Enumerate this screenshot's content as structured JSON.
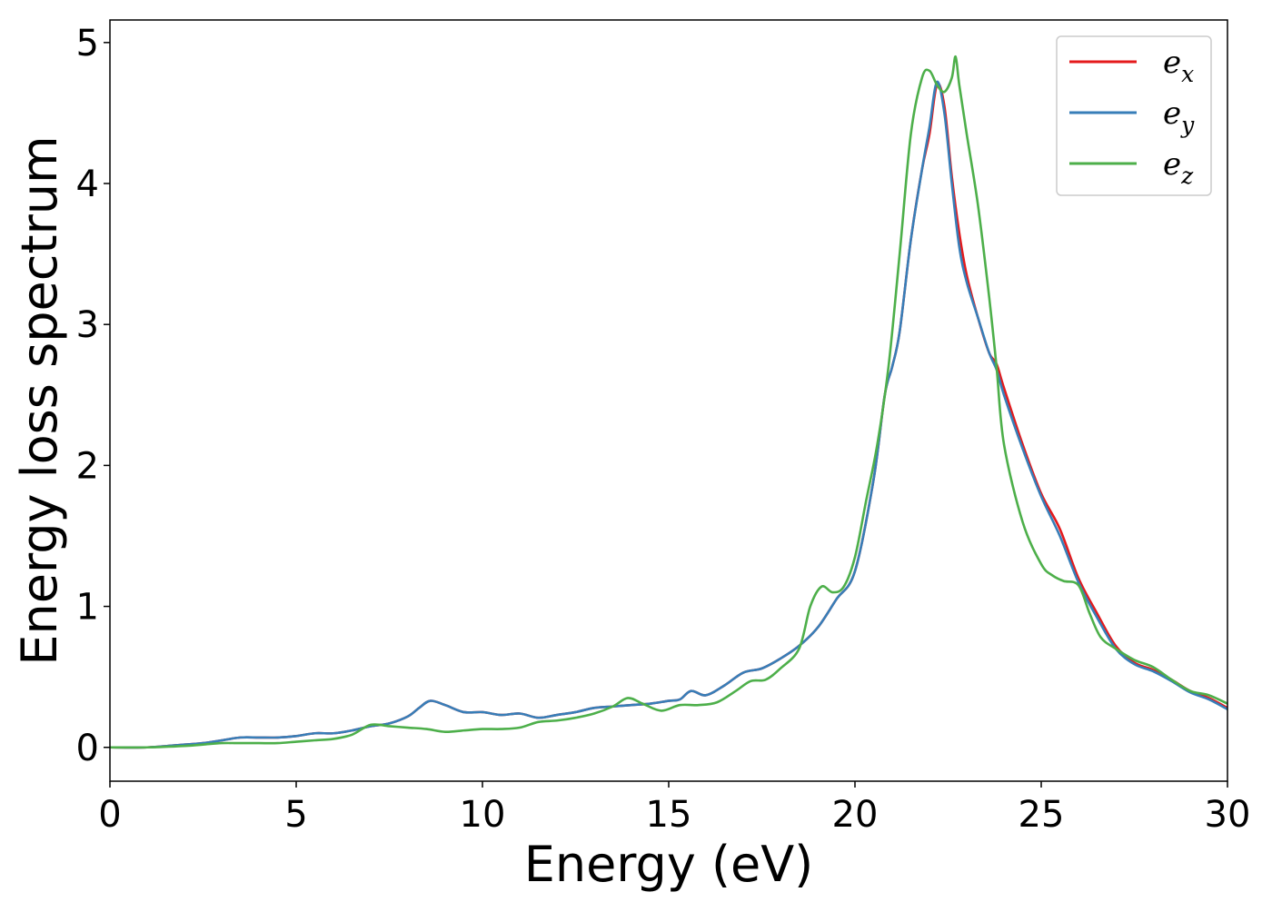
{
  "chart_data": {
    "type": "line",
    "xlabel": "Energy (eV)",
    "ylabel": "Energy loss spectrum",
    "xlim": [
      0,
      30
    ],
    "ylim": [
      -0.24,
      5.16
    ],
    "xticks": [
      "0",
      "5",
      "10",
      "15",
      "20",
      "25",
      "30"
    ],
    "yticks": [
      "0",
      "1",
      "2",
      "3",
      "4",
      "5"
    ],
    "grid": false,
    "legend_position": "top-right",
    "series": [
      {
        "name": "e_x",
        "legend_base": "e",
        "legend_sub": "x",
        "color": "#e41a1c",
        "x": [
          0,
          1,
          2,
          2.5,
          3,
          3.5,
          4,
          4.5,
          5,
          5.5,
          6,
          6.5,
          7,
          7.5,
          8,
          8.3,
          8.6,
          9,
          9.5,
          10,
          10.5,
          11,
          11.5,
          12,
          12.5,
          13,
          13.5,
          14,
          14.5,
          15,
          15.3,
          15.6,
          16,
          16.5,
          17,
          17.5,
          18,
          18.5,
          19,
          19.5,
          20,
          20.5,
          20.8,
          21,
          21.2,
          21.5,
          21.8,
          22,
          22.2,
          22.4,
          22.6,
          22.8,
          23,
          23.3,
          23.6,
          23.8,
          24,
          24.5,
          25,
          25.5,
          26,
          26.5,
          27,
          27.5,
          28,
          28.5,
          29,
          29.5,
          30
        ],
        "values": [
          0,
          0,
          0.02,
          0.03,
          0.05,
          0.07,
          0.07,
          0.07,
          0.08,
          0.1,
          0.1,
          0.12,
          0.15,
          0.17,
          0.22,
          0.28,
          0.33,
          0.3,
          0.25,
          0.25,
          0.23,
          0.24,
          0.21,
          0.23,
          0.25,
          0.28,
          0.29,
          0.3,
          0.31,
          0.33,
          0.34,
          0.4,
          0.37,
          0.44,
          0.53,
          0.56,
          0.63,
          0.72,
          0.85,
          1.05,
          1.25,
          1.9,
          2.5,
          2.7,
          2.95,
          3.6,
          4.1,
          4.35,
          4.7,
          4.55,
          4.05,
          3.65,
          3.35,
          3.05,
          2.8,
          2.72,
          2.55,
          2.15,
          1.8,
          1.55,
          1.2,
          0.95,
          0.72,
          0.6,
          0.55,
          0.48,
          0.4,
          0.35,
          0.28
        ]
      },
      {
        "name": "e_y",
        "legend_base": "e",
        "legend_sub": "y",
        "color": "#377eb8",
        "x": [
          0,
          1,
          2,
          2.5,
          3,
          3.5,
          4,
          4.5,
          5,
          5.5,
          6,
          6.5,
          7,
          7.5,
          8,
          8.3,
          8.6,
          9,
          9.5,
          10,
          10.5,
          11,
          11.5,
          12,
          12.5,
          13,
          13.5,
          14,
          14.5,
          15,
          15.3,
          15.6,
          16,
          16.5,
          17,
          17.5,
          18,
          18.5,
          19,
          19.5,
          20,
          20.5,
          20.8,
          21,
          21.2,
          21.5,
          21.8,
          22,
          22.2,
          22.4,
          22.6,
          22.8,
          23,
          23.3,
          23.6,
          23.8,
          24,
          24.5,
          25,
          25.5,
          26,
          26.5,
          27,
          27.5,
          28,
          28.5,
          29,
          29.5,
          30
        ],
        "values": [
          0,
          0,
          0.02,
          0.03,
          0.05,
          0.07,
          0.07,
          0.07,
          0.08,
          0.1,
          0.1,
          0.12,
          0.15,
          0.17,
          0.22,
          0.28,
          0.33,
          0.3,
          0.25,
          0.25,
          0.23,
          0.24,
          0.21,
          0.23,
          0.25,
          0.28,
          0.29,
          0.3,
          0.31,
          0.33,
          0.34,
          0.4,
          0.37,
          0.44,
          0.53,
          0.56,
          0.63,
          0.72,
          0.85,
          1.05,
          1.25,
          1.9,
          2.5,
          2.7,
          2.95,
          3.6,
          4.1,
          4.4,
          4.72,
          4.5,
          4.0,
          3.55,
          3.3,
          3.05,
          2.8,
          2.68,
          2.5,
          2.12,
          1.78,
          1.5,
          1.17,
          0.92,
          0.7,
          0.59,
          0.54,
          0.47,
          0.39,
          0.34,
          0.27
        ]
      },
      {
        "name": "e_z",
        "legend_base": "e",
        "legend_sub": "z",
        "color": "#4daf4a",
        "x": [
          0,
          1,
          2,
          2.5,
          3,
          3.5,
          4,
          4.5,
          5,
          5.5,
          6,
          6.5,
          7,
          7.5,
          8,
          8.5,
          9,
          9.5,
          10,
          10.5,
          11,
          11.5,
          12,
          12.5,
          13,
          13.5,
          13.9,
          14.3,
          14.8,
          15.3,
          15.8,
          16.3,
          16.8,
          17.2,
          17.6,
          18,
          18.5,
          18.8,
          19.1,
          19.4,
          19.7,
          20,
          20.3,
          20.6,
          20.9,
          21.2,
          21.5,
          21.8,
          22,
          22.2,
          22.4,
          22.6,
          22.7,
          22.8,
          23,
          23.3,
          23.6,
          23.8,
          24,
          24.5,
          25,
          25.3,
          25.6,
          26,
          26.3,
          26.6,
          27,
          27.5,
          28,
          28.5,
          29,
          29.5,
          30
        ],
        "values": [
          0,
          0,
          0.01,
          0.02,
          0.03,
          0.03,
          0.03,
          0.03,
          0.04,
          0.05,
          0.06,
          0.09,
          0.16,
          0.15,
          0.14,
          0.13,
          0.11,
          0.12,
          0.13,
          0.13,
          0.14,
          0.18,
          0.19,
          0.21,
          0.24,
          0.29,
          0.35,
          0.31,
          0.26,
          0.3,
          0.3,
          0.32,
          0.4,
          0.47,
          0.48,
          0.56,
          0.7,
          1.0,
          1.14,
          1.1,
          1.14,
          1.35,
          1.75,
          2.15,
          2.7,
          3.5,
          4.35,
          4.75,
          4.8,
          4.7,
          4.65,
          4.75,
          4.9,
          4.7,
          4.35,
          3.85,
          3.2,
          2.7,
          2.15,
          1.6,
          1.3,
          1.22,
          1.18,
          1.15,
          0.95,
          0.78,
          0.7,
          0.62,
          0.57,
          0.48,
          0.4,
          0.37,
          0.31
        ]
      }
    ]
  }
}
